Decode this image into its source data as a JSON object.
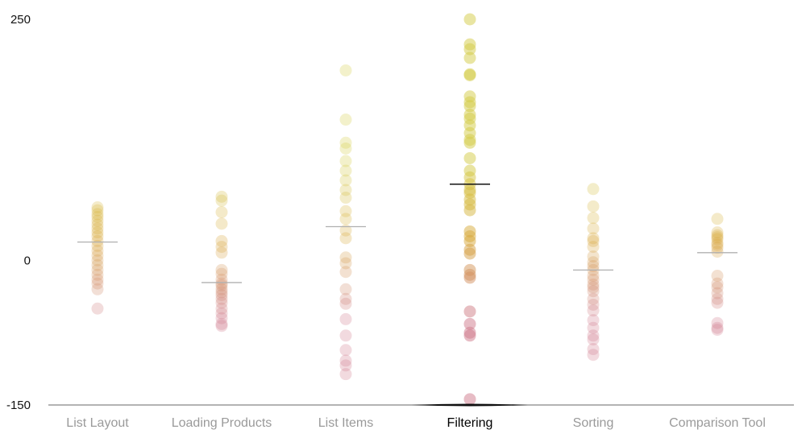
{
  "chart_data": {
    "type": "scatter",
    "title": "",
    "xlabel": "",
    "ylabel": "",
    "ylim": [
      -150,
      250
    ],
    "yticks": [
      250,
      0,
      -150
    ],
    "grid": false,
    "active_category": "Filtering",
    "colors": {
      "high": "#d4cc45",
      "mid": "#d7a73a",
      "low": "#cf7a8c",
      "axis": "#9a9a9a",
      "label_inactive": "#9a9a9a",
      "label_active": "#000000",
      "mean_inactive": "#b0b0b0",
      "mean_active": "#111111"
    },
    "categories": [
      {
        "label": "List Layout",
        "mean": 19,
        "values": [
          55,
          52,
          48,
          45,
          41,
          37,
          33,
          29,
          25,
          20,
          15,
          10,
          5,
          0,
          -5,
          -10,
          -15,
          -20,
          -24,
          -30,
          -50
        ]
      },
      {
        "label": "Loading Products",
        "mean": -23,
        "values": [
          66,
          62,
          50,
          38,
          20,
          14,
          8,
          -10,
          -14,
          -20,
          -24,
          -26,
          -30,
          -33,
          -36,
          -40,
          -44,
          -50,
          -55,
          -60,
          -66,
          -68
        ]
      },
      {
        "label": "List Items",
        "mean": 35,
        "values": [
          197,
          146,
          122,
          116,
          103,
          93,
          83,
          73,
          65,
          51,
          43,
          31,
          23,
          3,
          -3,
          -12,
          -30,
          -40,
          -45,
          -61,
          -78,
          -93,
          -104,
          -109,
          -118
        ]
      },
      {
        "label": "Filtering",
        "mean": 79,
        "values": [
          250,
          224,
          219,
          210,
          193,
          192,
          170,
          164,
          160,
          151,
          147,
          140,
          132,
          125,
          122,
          106,
          93,
          86,
          79,
          73,
          70,
          63,
          58,
          52,
          30,
          25,
          20,
          11,
          7,
          -10,
          -15,
          -18,
          -53,
          -66,
          -75,
          -78,
          -144
        ]
      },
      {
        "label": "Sorting",
        "mean": -10,
        "values": [
          74,
          56,
          44,
          33,
          23,
          20,
          14,
          4,
          -2,
          -6,
          -10,
          -16,
          -20,
          -25,
          -28,
          -32,
          -40,
          -46,
          -52,
          -62,
          -70,
          -78,
          -82,
          -92,
          -98
        ]
      },
      {
        "label": "Comparison Tool",
        "mean": 8,
        "values": [
          43,
          29,
          26,
          24,
          22,
          18,
          16,
          13,
          9,
          -16,
          -24,
          -28,
          -34,
          -40,
          -44,
          -65,
          -70,
          -72
        ]
      }
    ]
  }
}
